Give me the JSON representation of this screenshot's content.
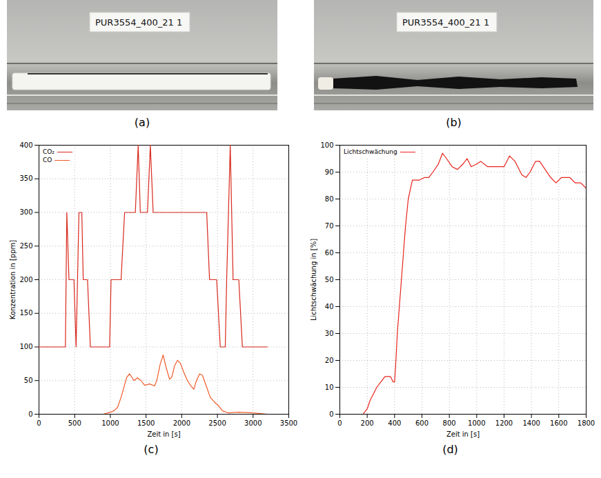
{
  "photos": [
    {
      "label": "(a)",
      "tag": "PUR3554_400_21 1"
    },
    {
      "label": "(b)",
      "tag": "PUR3554_400_21 1"
    }
  ],
  "chart_data": [
    {
      "type": "line",
      "label": "(c)",
      "xlabel": "Zeit in [s]",
      "ylabel": "Konzentration in [ppm]",
      "xlim": [
        0,
        3500
      ],
      "xticks": [
        0,
        500,
        1000,
        1500,
        2000,
        2500,
        3000,
        3500
      ],
      "ylim": [
        0,
        400
      ],
      "yticks": [
        0,
        50,
        100,
        150,
        200,
        250,
        300,
        350,
        400
      ],
      "grid": true,
      "legend": "top-left",
      "series": [
        {
          "name": "CO₂",
          "color": "#d8281c",
          "x": [
            0,
            370,
            390,
            420,
            490,
            520,
            560,
            600,
            620,
            680,
            720,
            990,
            1010,
            1150,
            1200,
            1350,
            1390,
            1420,
            1520,
            1560,
            1600,
            2350,
            2390,
            2490,
            2540,
            2610,
            2630,
            2680,
            2720,
            2800,
            2850,
            3200
          ],
          "values": [
            100,
            100,
            300,
            200,
            200,
            100,
            300,
            300,
            200,
            200,
            100,
            100,
            200,
            200,
            300,
            300,
            400,
            300,
            300,
            400,
            300,
            300,
            200,
            200,
            100,
            100,
            200,
            400,
            200,
            200,
            100,
            100
          ]
        },
        {
          "name": "CO",
          "color": "#f05a28",
          "x": [
            0,
            900,
            1000,
            1050,
            1100,
            1150,
            1230,
            1270,
            1330,
            1380,
            1430,
            1480,
            1550,
            1620,
            1650,
            1700,
            1740,
            1780,
            1830,
            1860,
            1900,
            1940,
            1980,
            2030,
            2080,
            2130,
            2170,
            2200,
            2250,
            2290,
            2350,
            2400,
            2460,
            2520,
            2570,
            2650,
            2800,
            3000,
            3200
          ],
          "values": [
            0,
            0,
            3,
            5,
            10,
            25,
            55,
            60,
            50,
            54,
            50,
            43,
            45,
            42,
            50,
            75,
            88,
            70,
            52,
            55,
            72,
            80,
            76,
            62,
            50,
            42,
            37,
            48,
            60,
            58,
            40,
            25,
            18,
            12,
            5,
            2,
            3,
            2,
            0
          ]
        }
      ]
    },
    {
      "type": "line",
      "label": "(d)",
      "xlabel": "Zeit in [s]",
      "ylabel": "Lichtschwächung in [%]",
      "xlim": [
        0,
        1800
      ],
      "xticks": [
        0,
        200,
        400,
        600,
        800,
        1000,
        1200,
        1400,
        1600,
        1800
      ],
      "ylim": [
        0,
        100
      ],
      "yticks": [
        0,
        10,
        20,
        30,
        40,
        50,
        60,
        70,
        80,
        90,
        100
      ],
      "grid": true,
      "legend": "top-left",
      "series": [
        {
          "name": "Lichtschwächung",
          "color": "#e8241c",
          "x": [
            0,
            170,
            200,
            220,
            250,
            270,
            300,
            330,
            370,
            390,
            400,
            410,
            420,
            435,
            450,
            465,
            480,
            500,
            530,
            580,
            620,
            650,
            680,
            720,
            750,
            780,
            820,
            860,
            900,
            930,
            960,
            1000,
            1030,
            1080,
            1200,
            1240,
            1280,
            1300,
            1330,
            1360,
            1390,
            1430,
            1460,
            1500,
            1540,
            1580,
            1620,
            1680,
            1720,
            1760,
            1800
          ],
          "values": [
            0,
            0,
            2,
            5,
            8,
            10,
            12,
            14,
            14,
            12,
            12,
            20,
            30,
            40,
            50,
            60,
            70,
            80,
            87,
            87,
            88,
            88,
            90,
            93,
            97,
            95,
            92,
            91,
            93,
            95,
            92,
            93,
            94,
            92,
            92,
            96,
            94,
            92,
            89,
            88,
            90,
            94,
            94,
            91,
            88,
            86,
            88,
            88,
            86,
            86,
            84
          ]
        }
      ]
    }
  ]
}
